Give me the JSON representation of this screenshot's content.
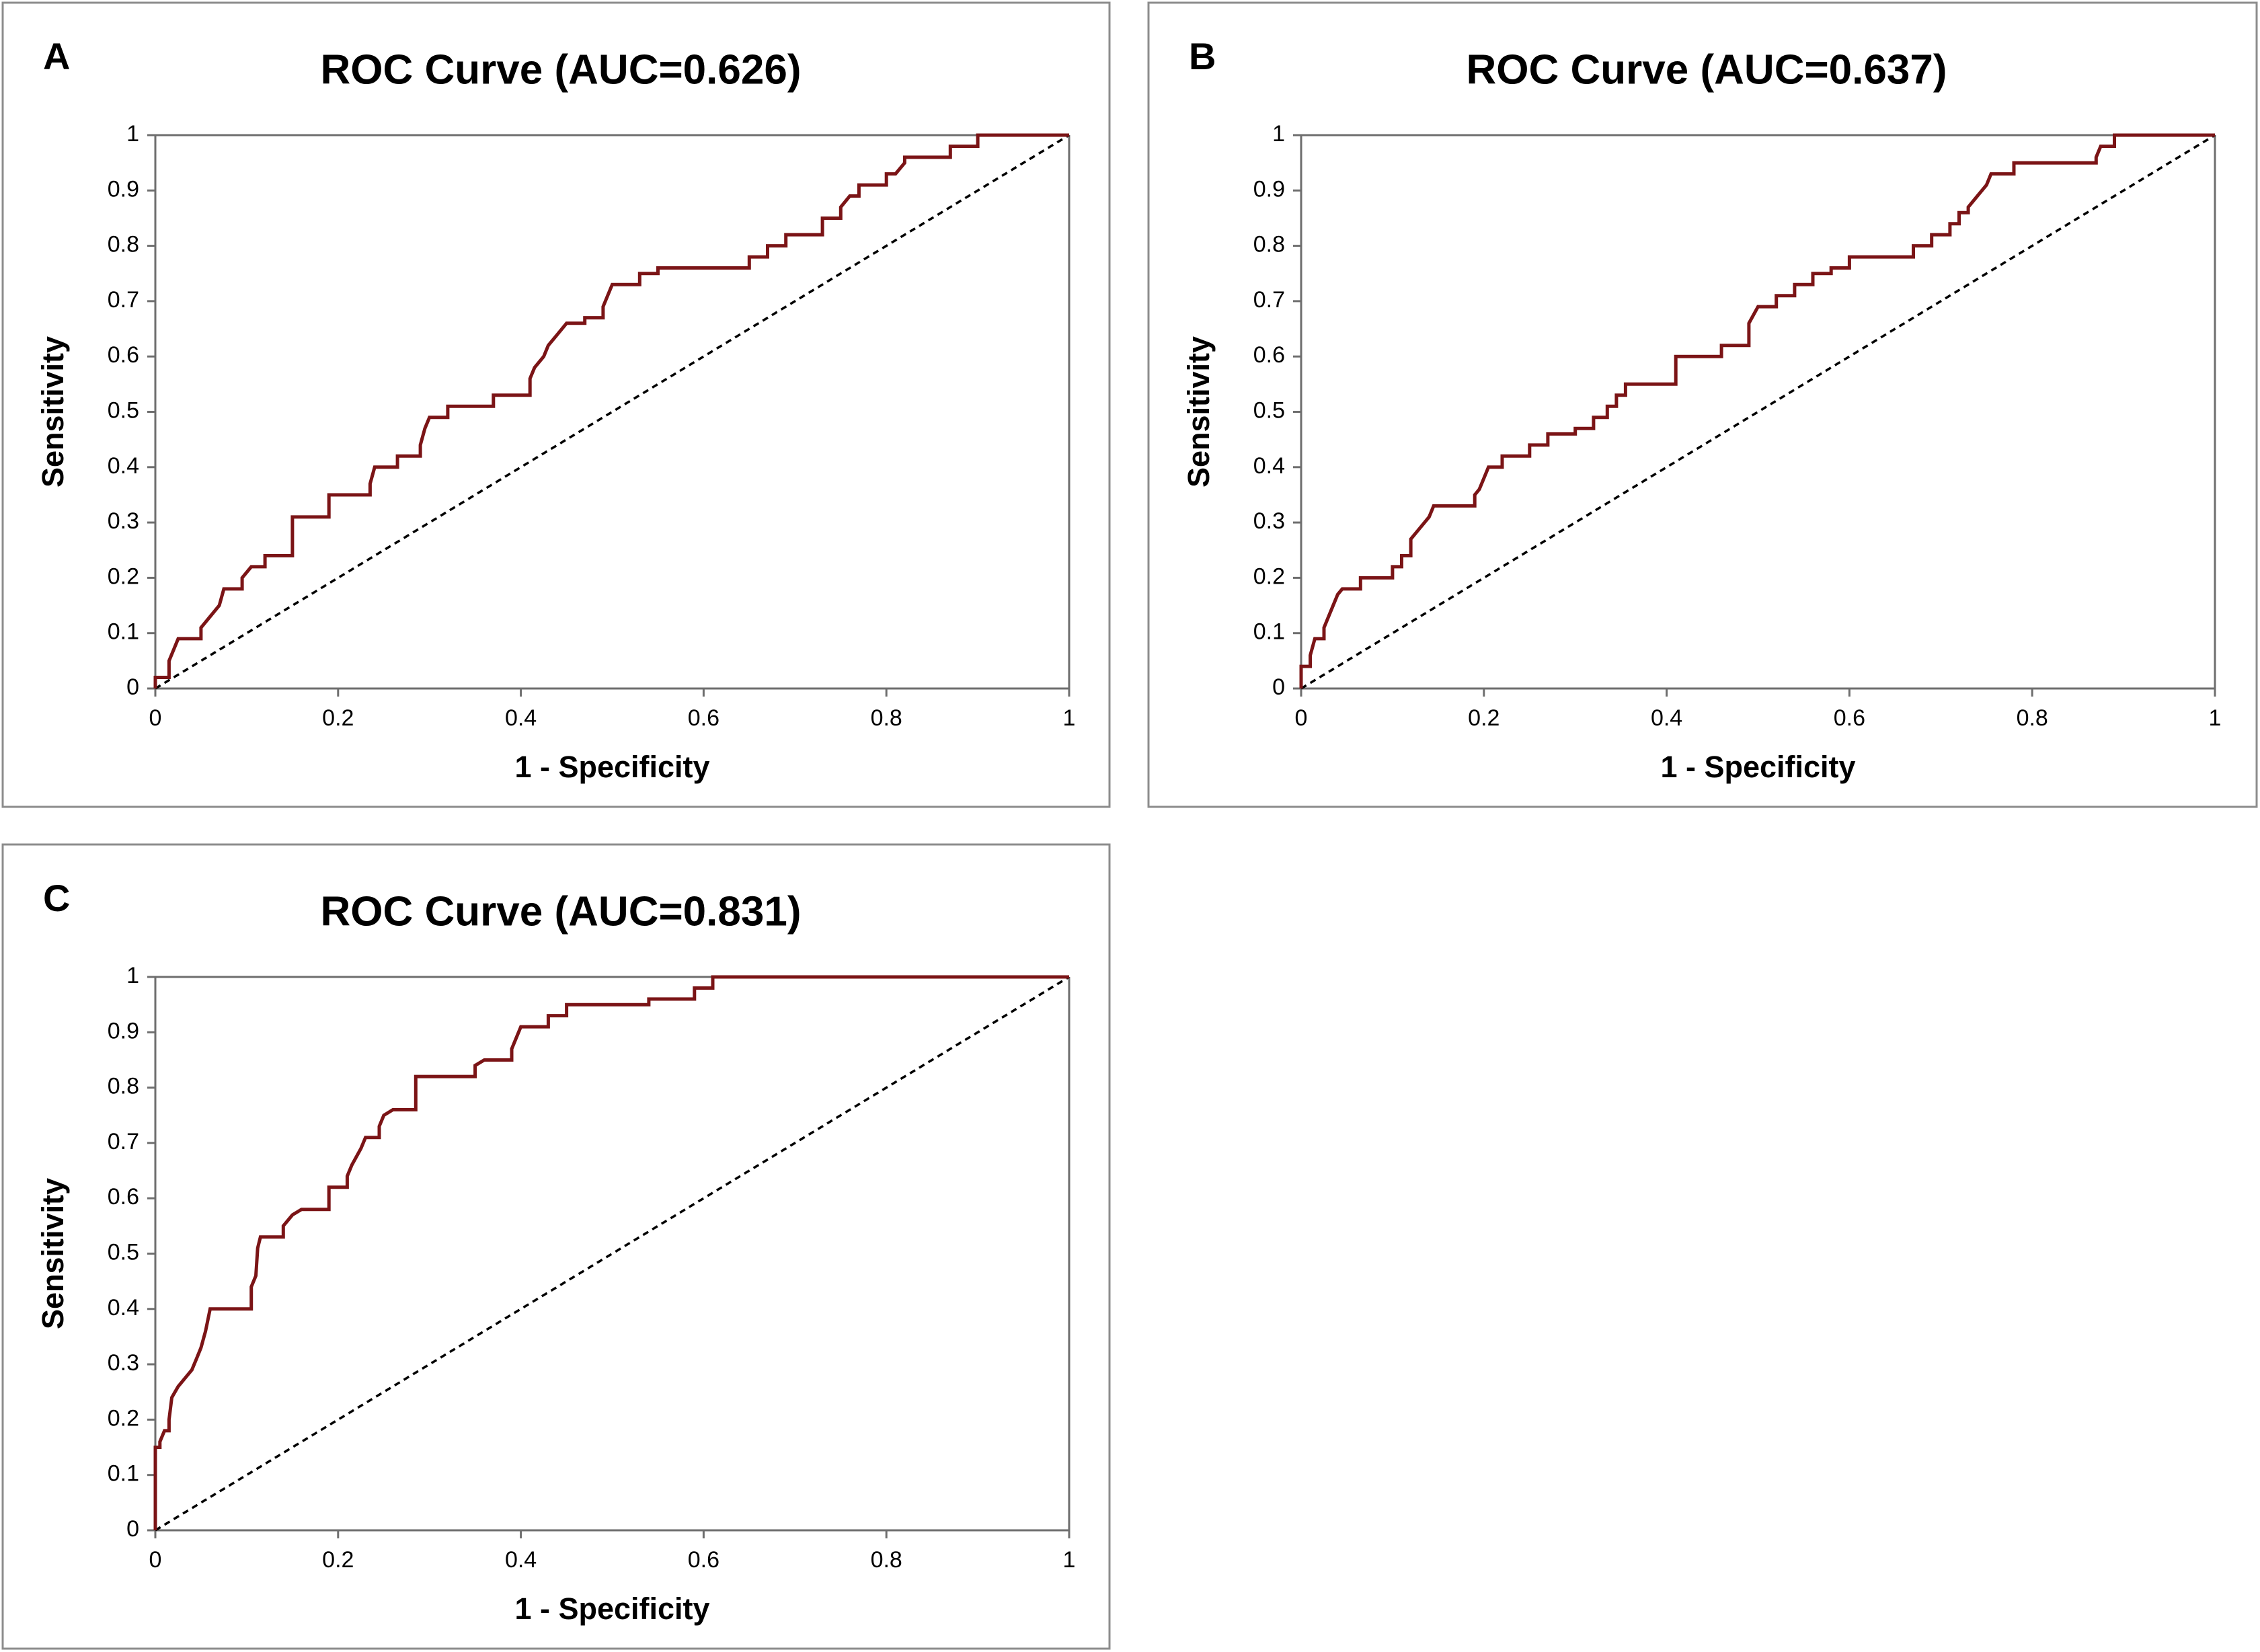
{
  "chart_data": [
    {
      "type": "line",
      "panel_label": "A",
      "title": "ROC Curve (AUC=0.626)",
      "x_label": "1 - Specificity",
      "y_label": "Sensitivity",
      "color": "#7b1416",
      "xlim": [
        0,
        1
      ],
      "ylim": [
        0,
        1
      ],
      "xticks": [
        0,
        0.2,
        0.4,
        0.6,
        0.8,
        1
      ],
      "yticks": [
        0,
        0.1,
        0.2,
        0.3,
        0.4,
        0.5,
        0.6,
        0.7,
        0.8,
        0.9,
        1
      ],
      "x": [
        0,
        0,
        0.015,
        0.015,
        0.02,
        0.025,
        0.05,
        0.05,
        0.06,
        0.07,
        0.075,
        0.095,
        0.095,
        0.105,
        0.12,
        0.12,
        0.15,
        0.15,
        0.19,
        0.19,
        0.235,
        0.235,
        0.24,
        0.265,
        0.265,
        0.29,
        0.29,
        0.295,
        0.3,
        0.32,
        0.32,
        0.37,
        0.37,
        0.41,
        0.41,
        0.415,
        0.425,
        0.43,
        0.44,
        0.45,
        0.47,
        0.47,
        0.49,
        0.49,
        0.5,
        0.53,
        0.53,
        0.55,
        0.55,
        0.65,
        0.65,
        0.67,
        0.67,
        0.69,
        0.69,
        0.73,
        0.73,
        0.75,
        0.75,
        0.76,
        0.77,
        0.77,
        0.8,
        0.8,
        0.81,
        0.82,
        0.82,
        0.87,
        0.87,
        0.9,
        0.9,
        1
      ],
      "values": [
        0,
        0.02,
        0.02,
        0.05,
        0.07,
        0.09,
        0.09,
        0.11,
        0.13,
        0.15,
        0.18,
        0.18,
        0.2,
        0.22,
        0.22,
        0.24,
        0.24,
        0.31,
        0.31,
        0.35,
        0.35,
        0.37,
        0.4,
        0.4,
        0.42,
        0.42,
        0.44,
        0.47,
        0.49,
        0.49,
        0.51,
        0.51,
        0.53,
        0.53,
        0.56,
        0.58,
        0.6,
        0.62,
        0.64,
        0.66,
        0.66,
        0.67,
        0.67,
        0.69,
        0.73,
        0.73,
        0.75,
        0.75,
        0.76,
        0.76,
        0.78,
        0.78,
        0.8,
        0.8,
        0.82,
        0.82,
        0.85,
        0.85,
        0.87,
        0.89,
        0.89,
        0.91,
        0.91,
        0.93,
        0.93,
        0.95,
        0.96,
        0.96,
        0.98,
        0.98,
        1,
        1
      ]
    },
    {
      "type": "line",
      "panel_label": "B",
      "title": "ROC Curve (AUC=0.637)",
      "x_label": "1 - Specificity",
      "y_label": "Sensitivity",
      "color": "#7b1416",
      "xlim": [
        0,
        1
      ],
      "ylim": [
        0,
        1
      ],
      "xticks": [
        0,
        0.2,
        0.4,
        0.6,
        0.8,
        1
      ],
      "yticks": [
        0,
        0.1,
        0.2,
        0.3,
        0.4,
        0.5,
        0.6,
        0.7,
        0.8,
        0.9,
        1
      ],
      "x": [
        0,
        0,
        0.01,
        0.01,
        0.015,
        0.025,
        0.025,
        0.03,
        0.035,
        0.04,
        0.045,
        0.065,
        0.065,
        0.1,
        0.1,
        0.11,
        0.11,
        0.12,
        0.12,
        0.13,
        0.14,
        0.145,
        0.19,
        0.19,
        0.195,
        0.2,
        0.205,
        0.22,
        0.22,
        0.25,
        0.25,
        0.27,
        0.27,
        0.3,
        0.3,
        0.32,
        0.32,
        0.335,
        0.335,
        0.345,
        0.345,
        0.355,
        0.355,
        0.41,
        0.41,
        0.46,
        0.46,
        0.49,
        0.49,
        0.5,
        0.52,
        0.52,
        0.54,
        0.54,
        0.56,
        0.56,
        0.58,
        0.58,
        0.6,
        0.6,
        0.67,
        0.67,
        0.69,
        0.69,
        0.71,
        0.71,
        0.72,
        0.72,
        0.73,
        0.73,
        0.74,
        0.75,
        0.755,
        0.78,
        0.78,
        0.87,
        0.87,
        0.875,
        0.89,
        0.89,
        1
      ],
      "values": [
        0,
        0.04,
        0.04,
        0.06,
        0.09,
        0.09,
        0.11,
        0.13,
        0.15,
        0.17,
        0.18,
        0.18,
        0.2,
        0.2,
        0.22,
        0.22,
        0.24,
        0.24,
        0.27,
        0.29,
        0.31,
        0.33,
        0.33,
        0.35,
        0.36,
        0.38,
        0.4,
        0.4,
        0.42,
        0.42,
        0.44,
        0.44,
        0.46,
        0.46,
        0.47,
        0.47,
        0.49,
        0.49,
        0.51,
        0.51,
        0.53,
        0.53,
        0.55,
        0.55,
        0.6,
        0.6,
        0.62,
        0.62,
        0.66,
        0.69,
        0.69,
        0.71,
        0.71,
        0.73,
        0.73,
        0.75,
        0.75,
        0.76,
        0.76,
        0.78,
        0.78,
        0.8,
        0.8,
        0.82,
        0.82,
        0.84,
        0.84,
        0.86,
        0.86,
        0.87,
        0.89,
        0.91,
        0.93,
        0.93,
        0.95,
        0.95,
        0.96,
        0.98,
        0.98,
        1,
        1
      ]
    },
    {
      "type": "line",
      "panel_label": "C",
      "title": "ROC Curve (AUC=0.831)",
      "x_label": "1 - Specificity",
      "y_label": "Sensitivity",
      "color": "#7b1416",
      "xlim": [
        0,
        1
      ],
      "ylim": [
        0,
        1
      ],
      "xticks": [
        0,
        0.2,
        0.4,
        0.6,
        0.8,
        1
      ],
      "yticks": [
        0,
        0.1,
        0.2,
        0.3,
        0.4,
        0.5,
        0.6,
        0.7,
        0.8,
        0.9,
        1
      ],
      "x": [
        0,
        0,
        0.005,
        0.005,
        0.01,
        0.015,
        0.015,
        0.018,
        0.025,
        0.03,
        0.04,
        0.045,
        0.05,
        0.055,
        0.06,
        0.105,
        0.105,
        0.11,
        0.112,
        0.115,
        0.14,
        0.14,
        0.15,
        0.16,
        0.19,
        0.19,
        0.21,
        0.21,
        0.215,
        0.225,
        0.23,
        0.245,
        0.245,
        0.25,
        0.26,
        0.285,
        0.285,
        0.35,
        0.35,
        0.36,
        0.39,
        0.39,
        0.4,
        0.43,
        0.43,
        0.45,
        0.45,
        0.54,
        0.54,
        0.59,
        0.59,
        0.61,
        0.61,
        1
      ],
      "values": [
        0,
        0.15,
        0.15,
        0.16,
        0.18,
        0.18,
        0.2,
        0.24,
        0.26,
        0.27,
        0.29,
        0.31,
        0.33,
        0.36,
        0.4,
        0.4,
        0.44,
        0.46,
        0.51,
        0.53,
        0.53,
        0.55,
        0.57,
        0.58,
        0.58,
        0.62,
        0.62,
        0.64,
        0.66,
        0.69,
        0.71,
        0.71,
        0.73,
        0.75,
        0.76,
        0.76,
        0.82,
        0.82,
        0.84,
        0.85,
        0.85,
        0.87,
        0.91,
        0.91,
        0.93,
        0.93,
        0.95,
        0.95,
        0.96,
        0.96,
        0.98,
        0.98,
        1,
        1
      ]
    }
  ]
}
